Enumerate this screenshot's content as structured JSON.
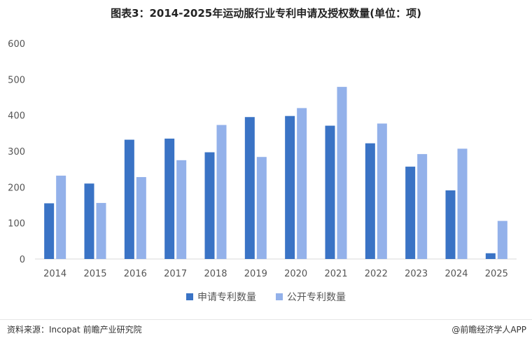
{
  "title": "图表3：2014-2025年运动服行业专利申请及授权数量(单位：项)",
  "colors": {
    "series1": "#3a73c5",
    "series2": "#93b1ea",
    "axis": "#d9d9d9",
    "tick_text": "#555555"
  },
  "chart_data": {
    "type": "bar",
    "categories": [
      "2014",
      "2015",
      "2016",
      "2017",
      "2018",
      "2019",
      "2020",
      "2021",
      "2022",
      "2023",
      "2024",
      "2025"
    ],
    "series": [
      {
        "name": "申请专利数量",
        "values": [
          155,
          210,
          332,
          335,
          297,
          395,
          398,
          371,
          322,
          257,
          191,
          16
        ]
      },
      {
        "name": "公开专利数量",
        "values": [
          232,
          156,
          228,
          275,
          373,
          284,
          420,
          479,
          377,
          292,
          307,
          106
        ]
      }
    ],
    "ylim": [
      0,
      600
    ],
    "yticks": [
      0,
      100,
      200,
      300,
      400,
      500,
      600
    ],
    "grid": false,
    "legend": "bottom-center"
  },
  "footer": {
    "source": "资料来源：Incopat 前瞻产业研究院",
    "app": "@前瞻经济学人APP"
  }
}
